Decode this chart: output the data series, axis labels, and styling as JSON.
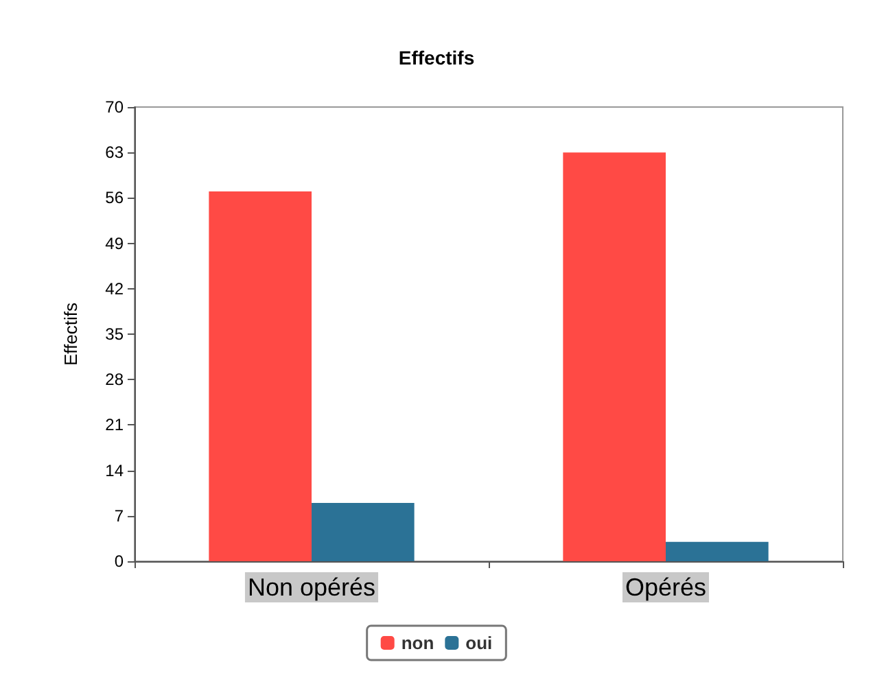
{
  "chart_data": {
    "type": "bar",
    "title": "Effectifs",
    "ylabel": "Effectifs",
    "categories": [
      "Non opérés",
      "Opérés"
    ],
    "series": [
      {
        "name": "non",
        "color": "#ff4a45",
        "values": [
          57,
          63
        ]
      },
      {
        "name": "oui",
        "color": "#2b7296",
        "values": [
          9,
          3
        ]
      }
    ],
    "ylim": [
      0,
      70
    ],
    "yticks": [
      0,
      7,
      14,
      21,
      28,
      35,
      42,
      49,
      56,
      63,
      70
    ],
    "grid": false,
    "legend": "bottom"
  }
}
